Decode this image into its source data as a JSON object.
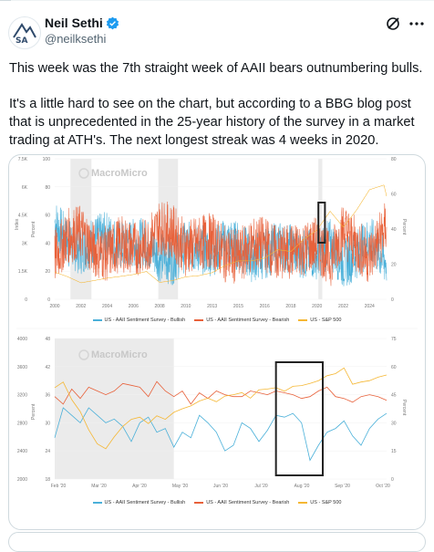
{
  "author": {
    "name": "Neil Sethi",
    "handle": "@neilksethi",
    "verified": true,
    "avatar_text": "SA"
  },
  "header_icons": [
    "grok-icon",
    "more-icon"
  ],
  "tweet": {
    "paragraph1": "This week was the 7th straight week of AAII bears outnumbering bulls.",
    "paragraph2": "It's a little hard to see on the chart, but according to a BBG blog post that is unprecedented in the 25-year history of the survey in a market trading at ATH's.  The next longest streak was 4 weeks in 2020."
  },
  "watermark": "MacroMicro",
  "colors": {
    "bullish": "#4ab0d9",
    "bearish": "#e8613a",
    "sp500": "#f5b733",
    "highlight_box": "#222222",
    "shade": "#ebebeb"
  },
  "chart_data": [
    {
      "type": "line",
      "x_range": [
        2000,
        2025.3
      ],
      "x_ticks": [
        "2000",
        "2002",
        "2004",
        "2006",
        "2008",
        "2010",
        "2013",
        "2015",
        "2016",
        "2018",
        "2020",
        "2022",
        "2024"
      ],
      "y_left_label": "Index",
      "y_left_ticks": [
        "0",
        "1.5K",
        "3K",
        "4.5K",
        "6K",
        "7.5K"
      ],
      "y_mid_label": "Percent",
      "y_mid_ticks": [
        "0",
        "20",
        "40",
        "60",
        "80",
        "100"
      ],
      "y_right_label": "Percent",
      "y_right_ticks": [
        "0",
        "20",
        "40",
        "60",
        "80"
      ],
      "series": [
        {
          "name": "US - AAII Sentiment Survey - Bullish",
          "axis": "mid",
          "approx_values": [
            [
              2000,
              55
            ],
            [
              2001,
              40
            ],
            [
              2002,
              35
            ],
            [
              2003,
              42
            ],
            [
              2004,
              45
            ],
            [
              2005,
              38
            ],
            [
              2006,
              40
            ],
            [
              2007,
              40
            ],
            [
              2008,
              30
            ],
            [
              2009,
              28
            ],
            [
              2010,
              38
            ],
            [
              2011,
              36
            ],
            [
              2012,
              34
            ],
            [
              2013,
              40
            ],
            [
              2014,
              38
            ],
            [
              2015,
              30
            ],
            [
              2016,
              32
            ],
            [
              2017,
              38
            ],
            [
              2018,
              36
            ],
            [
              2019,
              32
            ],
            [
              2020,
              32
            ],
            [
              2021,
              40
            ],
            [
              2022,
              25
            ],
            [
              2023,
              32
            ],
            [
              2024,
              42
            ],
            [
              2025.3,
              26
            ]
          ]
        },
        {
          "name": "US - AAII Sentiment Survey - Bearish",
          "axis": "mid",
          "approx_values": [
            [
              2000,
              30
            ],
            [
              2001,
              45
            ],
            [
              2002,
              48
            ],
            [
              2003,
              35
            ],
            [
              2004,
              32
            ],
            [
              2005,
              40
            ],
            [
              2006,
              36
            ],
            [
              2007,
              38
            ],
            [
              2008,
              52
            ],
            [
              2009,
              48
            ],
            [
              2010,
              36
            ],
            [
              2011,
              40
            ],
            [
              2012,
              42
            ],
            [
              2013,
              32
            ],
            [
              2014,
              30
            ],
            [
              2015,
              38
            ],
            [
              2016,
              40
            ],
            [
              2017,
              32
            ],
            [
              2018,
              34
            ],
            [
              2019,
              36
            ],
            [
              2020,
              40
            ],
            [
              2021,
              28
            ],
            [
              2022,
              50
            ],
            [
              2023,
              38
            ],
            [
              2024,
              30
            ],
            [
              2025.3,
              52
            ]
          ]
        },
        {
          "name": "US - S&P 500",
          "axis": "left",
          "approx_values": [
            [
              2000,
              1450
            ],
            [
              2001,
              1200
            ],
            [
              2002,
              880
            ],
            [
              2003,
              1000
            ],
            [
              2004,
              1130
            ],
            [
              2005,
              1220
            ],
            [
              2006,
              1320
            ],
            [
              2007,
              1480
            ],
            [
              2008,
              900
            ],
            [
              2009,
              1000
            ],
            [
              2010,
              1200
            ],
            [
              2011,
              1260
            ],
            [
              2012,
              1420
            ],
            [
              2013,
              1800
            ],
            [
              2014,
              2050
            ],
            [
              2015,
              2050
            ],
            [
              2016,
              2200
            ],
            [
              2017,
              2650
            ],
            [
              2018,
              2550
            ],
            [
              2019,
              3200
            ],
            [
              2020,
              3700
            ],
            [
              2021,
              4700
            ],
            [
              2022,
              3850
            ],
            [
              2023,
              4750
            ],
            [
              2024,
              5850
            ],
            [
              2025.1,
              6100
            ],
            [
              2025.3,
              5500
            ]
          ]
        }
      ],
      "shaded_ranges": [
        [
          2001.2,
          2002.8
        ],
        [
          2007.9,
          2009.4
        ],
        [
          2020.1,
          2020.4
        ]
      ],
      "highlight_box_range": [
        2020.1,
        2020.6
      ]
    },
    {
      "type": "line",
      "x_ticks": [
        "Feb '20",
        "Mar '20",
        "Apr '20",
        "May '20",
        "Jun '20",
        "Jul '20",
        "Aug '20",
        "Sep '20",
        "Oct '20"
      ],
      "y_left_ticks": [
        "2000",
        "2400",
        "2800",
        "3200",
        "3600",
        "4000"
      ],
      "y_mid_label": "Percent",
      "y_mid_ticks": [
        "18",
        "24",
        "30",
        "36",
        "42",
        "48"
      ],
      "y_right_label": "Percent",
      "y_right_ticks": [
        "0",
        "15",
        "30",
        "45",
        "60",
        "75"
      ],
      "series": [
        {
          "name": "US - AAII Sentiment Survey - Bullish",
          "axis": "right",
          "values": [
            22,
            38,
            34,
            30,
            38,
            34,
            30,
            32,
            28,
            20,
            30,
            33,
            25,
            27,
            17,
            25,
            22,
            34,
            30,
            25,
            15,
            18,
            30,
            27,
            20,
            26,
            34,
            33,
            35,
            30,
            10,
            18,
            25,
            27,
            31,
            23,
            18,
            27,
            32,
            35
          ]
        },
        {
          "name": "US - AAII Sentiment Survey - Bearish",
          "axis": "right",
          "values": [
            44,
            40,
            48,
            43,
            49,
            47,
            45,
            47,
            51,
            50,
            49,
            44,
            52,
            47,
            44,
            47,
            40,
            46,
            43,
            47,
            45,
            44,
            44,
            47,
            46,
            45,
            47,
            46,
            45,
            43,
            44,
            47,
            49,
            44,
            43,
            41,
            44,
            45,
            44,
            42
          ]
        },
        {
          "name": "US - S&P 500",
          "axis": "left",
          "values": [
            3300,
            3380,
            3130,
            2960,
            2700,
            2500,
            2430,
            2600,
            2750,
            2850,
            2880,
            2790,
            2900,
            2850,
            2950,
            3000,
            3040,
            3110,
            3150,
            3100,
            3180,
            3200,
            3230,
            3150,
            3270,
            3280,
            3300,
            3250,
            3320,
            3330,
            3360,
            3400,
            3470,
            3500,
            3580,
            3350,
            3380,
            3400,
            3450,
            3480
          ]
        }
      ],
      "shaded_ranges": [
        [
          "Feb '20",
          "May '20"
        ]
      ],
      "highlight_box_range": [
        "Aug '20",
        "Sep '20"
      ]
    }
  ],
  "legend": {
    "bullish": "US - AAII Sentiment Survey - Bullish",
    "bearish": "US - AAII Sentiment Survey - Bearish",
    "sp500": "US - S&P 500"
  }
}
